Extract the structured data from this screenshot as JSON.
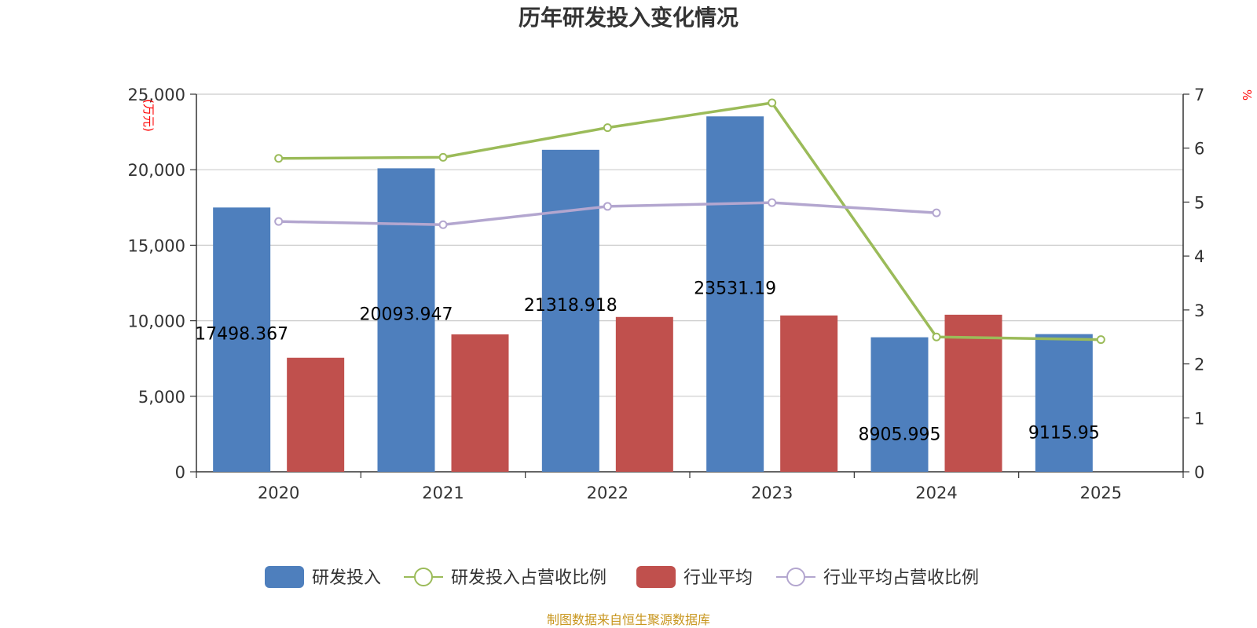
{
  "chart_data": {
    "type": "bar",
    "title": "历年研发投入变化情况",
    "categories": [
      "2020",
      "2021",
      "2022",
      "2023",
      "2024",
      "2025"
    ],
    "y_left": {
      "unit": "(万元)",
      "range": [
        0,
        25000
      ],
      "ticks": [
        0,
        5000,
        10000,
        15000,
        20000,
        25000
      ],
      "tick_labels": [
        "0",
        "5,000",
        "10,000",
        "15,000",
        "20,000",
        "25,000"
      ]
    },
    "y_right": {
      "unit": "%",
      "range": [
        0,
        7
      ],
      "ticks": [
        0,
        1,
        2,
        3,
        4,
        5,
        6,
        7
      ],
      "tick_labels": [
        "0",
        "1",
        "2",
        "3",
        "4",
        "5",
        "6",
        "7"
      ]
    },
    "grid": true,
    "legend_position": "bottom",
    "series": [
      {
        "name": "研发投入",
        "type": "bar",
        "axis": "left",
        "color": "#4e7fbd",
        "values": [
          17498.367,
          20093.947,
          21318.918,
          23531.19,
          8905.995,
          9115.95
        ],
        "labels": [
          "17498.367",
          "20093.947",
          "21318.918",
          "23531.19",
          "8905.995",
          "9115.95"
        ]
      },
      {
        "name": "研发投入占营收比例",
        "type": "line",
        "axis": "right",
        "color": "#9bbb59",
        "values": [
          5.81,
          5.83,
          6.38,
          6.84,
          2.5,
          2.45
        ]
      },
      {
        "name": "行业平均",
        "type": "bar",
        "axis": "left",
        "color": "#c0504d",
        "values": [
          7550,
          9100,
          10250,
          10350,
          10400,
          null
        ]
      },
      {
        "name": "行业平均占营收比例",
        "type": "line",
        "axis": "right",
        "color": "#b3a6cf",
        "values": [
          4.64,
          4.58,
          4.92,
          4.99,
          4.8,
          null
        ]
      }
    ],
    "legend_order": [
      0,
      1,
      2,
      3
    ],
    "source": "制图数据来自恒生聚源数据库"
  }
}
